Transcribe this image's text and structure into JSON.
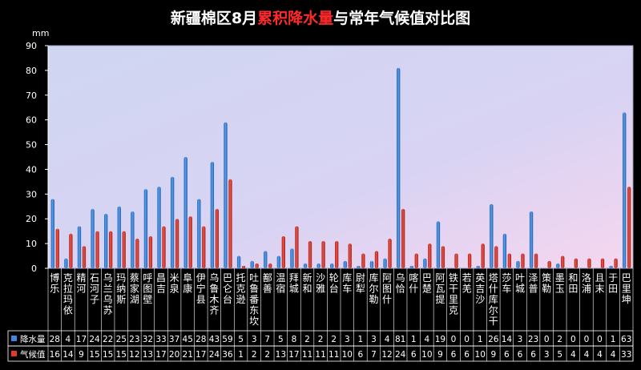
{
  "title": {
    "part1": "新疆棉区8月",
    "part2": "累积降水量",
    "part3": "与常年气候值对比图",
    "color_normal": "#ffffff",
    "color_highlight": "#ff2a2a"
  },
  "chart_data": {
    "type": "bar",
    "ylabel": "mm",
    "ylim": [
      0,
      90
    ],
    "yticks": [
      0,
      10,
      20,
      30,
      40,
      50,
      60,
      70,
      80,
      90
    ],
    "grid": false,
    "legend": "bottom-left (data table)",
    "categories": [
      "博乐",
      "克拉玛依",
      "精河",
      "石河子",
      "乌兰乌苏",
      "玛纳斯",
      "蔡家湖",
      "呼图壁",
      "昌吉",
      "米泉",
      "阜康",
      "伊宁县",
      "乌鲁木齐",
      "巴仑台",
      "托克逊",
      "吐鲁番东坎",
      "鄯善",
      "温宿",
      "拜城",
      "新和",
      "沙雅",
      "轮台",
      "库车",
      "尉犁",
      "库尔勒",
      "阿图什",
      "乌恰",
      "喀什",
      "巴楚",
      "阿瓦提",
      "铁干里克",
      "若羌",
      "英吉沙",
      "塔什库尔干",
      "莎车",
      "叶城",
      "泽普",
      "策勒",
      "墨玉",
      "和田",
      "洛浦",
      "且末",
      "于田",
      "巴里坤"
    ],
    "series": [
      {
        "name": "降水量",
        "color": "#3a86e0",
        "values": [
          28,
          4,
          17,
          24,
          22,
          25,
          23,
          32,
          33,
          37,
          45,
          28,
          43,
          59,
          5,
          3,
          7,
          5,
          8,
          2,
          2,
          2,
          3,
          1,
          3,
          4,
          81,
          1,
          4,
          19,
          0,
          0,
          1,
          26,
          14,
          3,
          23,
          0,
          2,
          0,
          0,
          0,
          1,
          63
        ]
      },
      {
        "name": "气候值",
        "color": "#e0392e",
        "values": [
          16,
          14,
          9,
          15,
          15,
          15,
          12,
          13,
          17,
          20,
          21,
          17,
          24,
          36,
          1,
          2,
          2,
          13,
          17,
          11,
          11,
          11,
          10,
          6,
          7,
          12,
          24,
          6,
          10,
          9,
          6,
          6,
          10,
          9,
          6,
          6,
          6,
          3,
          5,
          4,
          4,
          4,
          4,
          33
        ]
      }
    ]
  }
}
